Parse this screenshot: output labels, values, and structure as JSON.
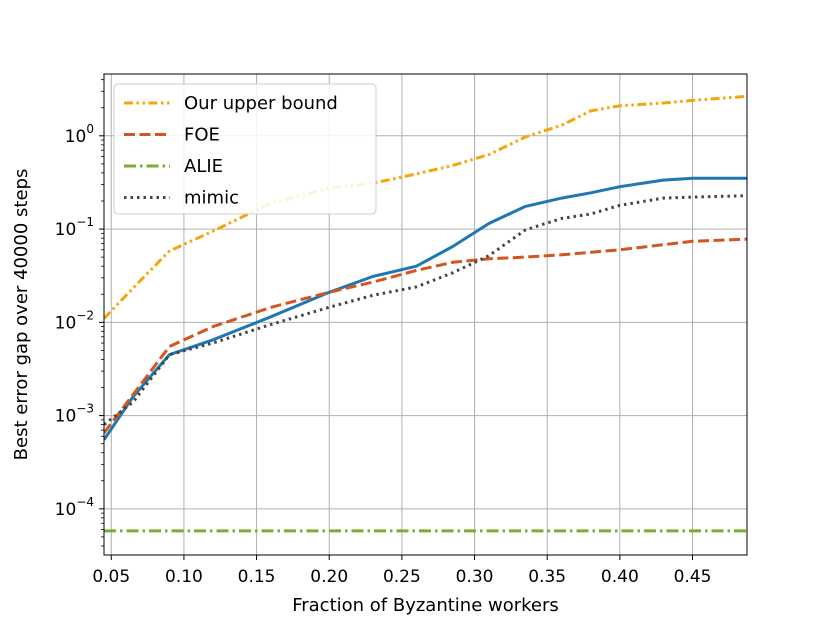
{
  "chart_data": {
    "type": "line",
    "xlabel": "Fraction of Byzantine workers",
    "ylabel": "Best error gap over 40000 steps",
    "xlim": [
      0.045,
      0.4875
    ],
    "ylim": [
      3.2e-05,
      4.6
    ],
    "yscale": "log",
    "grid": true,
    "legend_position": "top-left",
    "x_ticks": [
      "0.05",
      "0.10",
      "0.15",
      "0.20",
      "0.25",
      "0.30",
      "0.35",
      "0.40",
      "0.45"
    ],
    "x_tick_values": [
      0.05,
      0.1,
      0.15,
      0.2,
      0.25,
      0.3,
      0.35,
      0.4,
      0.45
    ],
    "y_ticks": [
      {
        "base": "10",
        "exp": "−4",
        "value": 0.0001
      },
      {
        "base": "10",
        "exp": "−3",
        "value": 0.001
      },
      {
        "base": "10",
        "exp": "−2",
        "value": 0.01
      },
      {
        "base": "10",
        "exp": "−1",
        "value": 0.1
      },
      {
        "base": "10",
        "exp": "0",
        "value": 1
      }
    ],
    "series": [
      {
        "name": "",
        "color": "#1f77b4",
        "style": "solid",
        "x": [
          0.045,
          0.065,
          0.09,
          0.12,
          0.16,
          0.2,
          0.23,
          0.26,
          0.285,
          0.31,
          0.335,
          0.36,
          0.38,
          0.4,
          0.43,
          0.45,
          0.4875
        ],
        "y": [
          0.00055,
          0.0016,
          0.0045,
          0.0065,
          0.0115,
          0.021,
          0.031,
          0.04,
          0.065,
          0.115,
          0.175,
          0.215,
          0.245,
          0.285,
          0.335,
          0.35,
          0.35
        ]
      },
      {
        "name": "FOE",
        "color": "#d4561f",
        "style": "dashed",
        "x": [
          0.045,
          0.09,
          0.12,
          0.16,
          0.2,
          0.23,
          0.26,
          0.285,
          0.31,
          0.335,
          0.36,
          0.4,
          0.43,
          0.45,
          0.4875
        ],
        "y": [
          0.00065,
          0.0055,
          0.009,
          0.0145,
          0.021,
          0.027,
          0.036,
          0.044,
          0.048,
          0.05,
          0.053,
          0.06,
          0.068,
          0.074,
          0.078
        ]
      },
      {
        "name": "ALIE",
        "color": "#7aad32",
        "style": "dashdot",
        "x": [
          0.045,
          0.4875
        ],
        "y": [
          5.8e-05,
          5.8e-05
        ]
      },
      {
        "name": "mimic",
        "color": "#444444",
        "style": "dotted",
        "x": [
          0.045,
          0.065,
          0.09,
          0.12,
          0.16,
          0.2,
          0.23,
          0.26,
          0.285,
          0.31,
          0.335,
          0.36,
          0.38,
          0.4,
          0.43,
          0.45,
          0.4875
        ],
        "y": [
          0.0008,
          0.0014,
          0.0045,
          0.006,
          0.0095,
          0.0145,
          0.0195,
          0.024,
          0.034,
          0.052,
          0.098,
          0.13,
          0.145,
          0.18,
          0.215,
          0.22,
          0.228
        ]
      },
      {
        "name": "Our upper bound",
        "color": "#f5a60a",
        "style": "dashdotdot",
        "x": [
          0.045,
          0.07,
          0.09,
          0.12,
          0.16,
          0.2,
          0.23,
          0.26,
          0.285,
          0.31,
          0.335,
          0.36,
          0.38,
          0.4,
          0.43,
          0.45,
          0.4875
        ],
        "y": [
          0.011,
          0.028,
          0.058,
          0.095,
          0.19,
          0.275,
          0.31,
          0.39,
          0.48,
          0.63,
          0.97,
          1.3,
          1.85,
          2.1,
          2.25,
          2.4,
          2.65
        ]
      }
    ],
    "legend": [
      {
        "label": "Our upper bound",
        "color": "#f5a60a",
        "style": "dashdotdot"
      },
      {
        "label": "FOE",
        "color": "#d4561f",
        "style": "dashed"
      },
      {
        "label": "ALIE",
        "color": "#7aad32",
        "style": "dashdot"
      },
      {
        "label": "mimic",
        "color": "#444444",
        "style": "dotted"
      }
    ]
  }
}
